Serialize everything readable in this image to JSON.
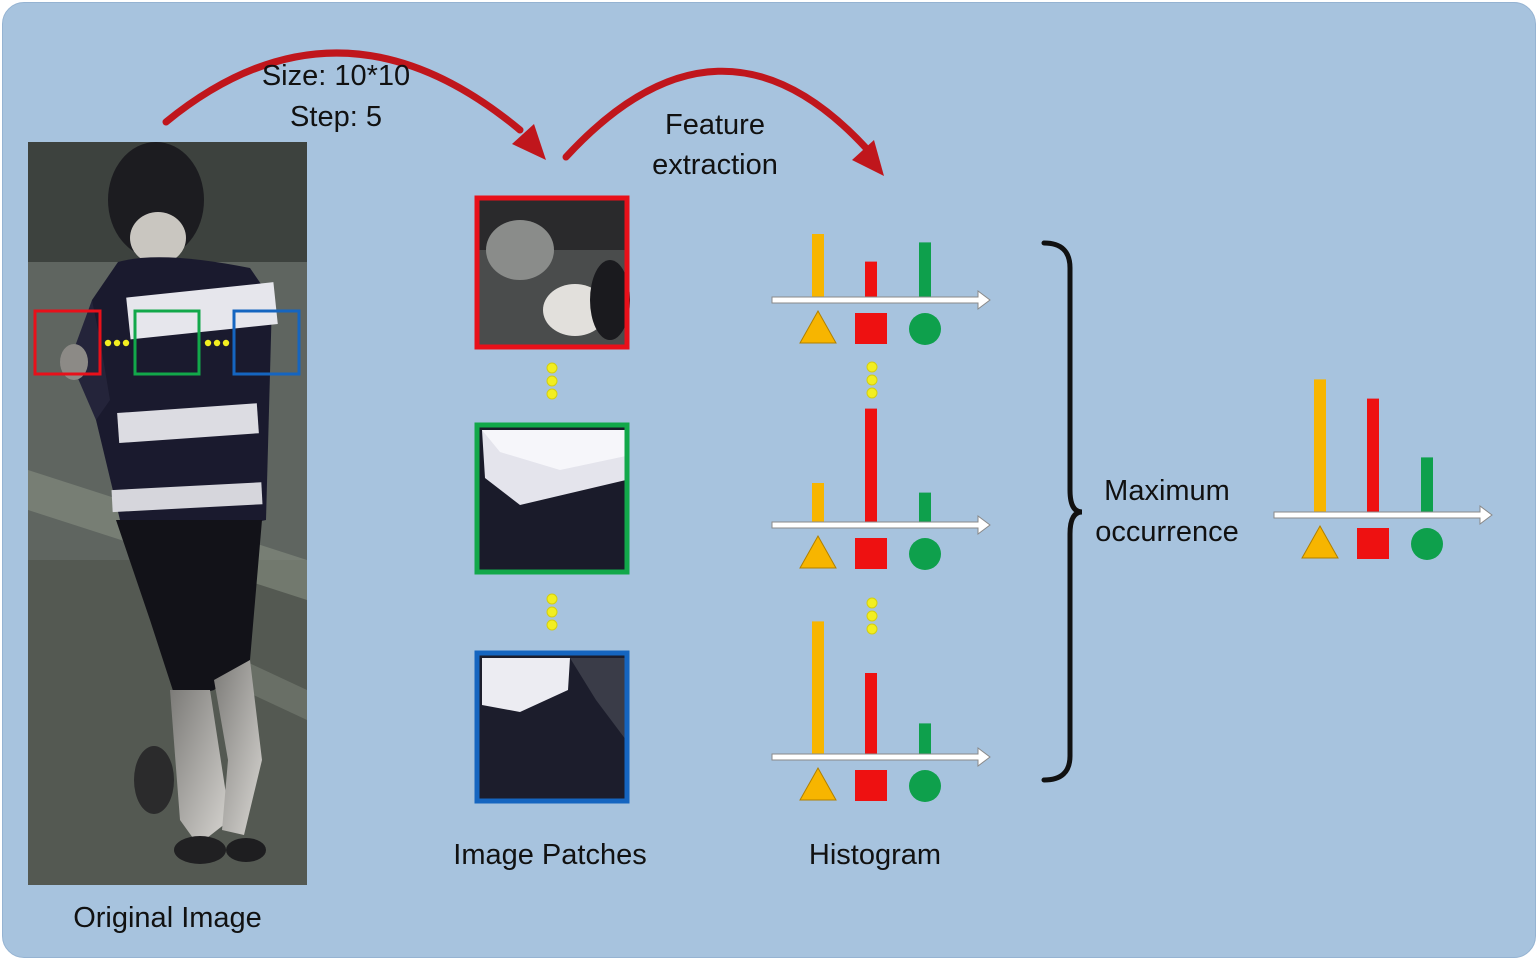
{
  "labels": {
    "size": "Size: 10*10",
    "step": "Step: 5",
    "feature_line1": "Feature",
    "feature_line2": "extraction",
    "original_image": "Original Image",
    "image_patches": "Image Patches",
    "histogram": "Histogram",
    "max_line1": "Maximum",
    "max_line2": "occurrence"
  },
  "colors": {
    "background": "#a7c3de",
    "arrow": "#c0161c",
    "patch_red": "#e8101a",
    "patch_green": "#12a84a",
    "patch_blue": "#1565c0",
    "bar_yellow": "#f7b500",
    "bar_red": "#ee1111",
    "bar_green": "#0ea04c",
    "dots": "#f2ee20"
  },
  "icons": [
    "triangle-icon",
    "square-icon",
    "circle-icon"
  ],
  "histograms": [
    {
      "name": "red-patch-histogram",
      "values": [
        0.55,
        0.32,
        0.48
      ]
    },
    {
      "name": "green-patch-histogram",
      "values": [
        0.35,
        0.97,
        0.27
      ]
    },
    {
      "name": "blue-patch-histogram",
      "values": [
        1.13,
        0.7,
        0.28
      ]
    },
    {
      "name": "maximum-occurrence-histogram",
      "values": [
        1.13,
        0.97,
        0.48
      ]
    }
  ]
}
